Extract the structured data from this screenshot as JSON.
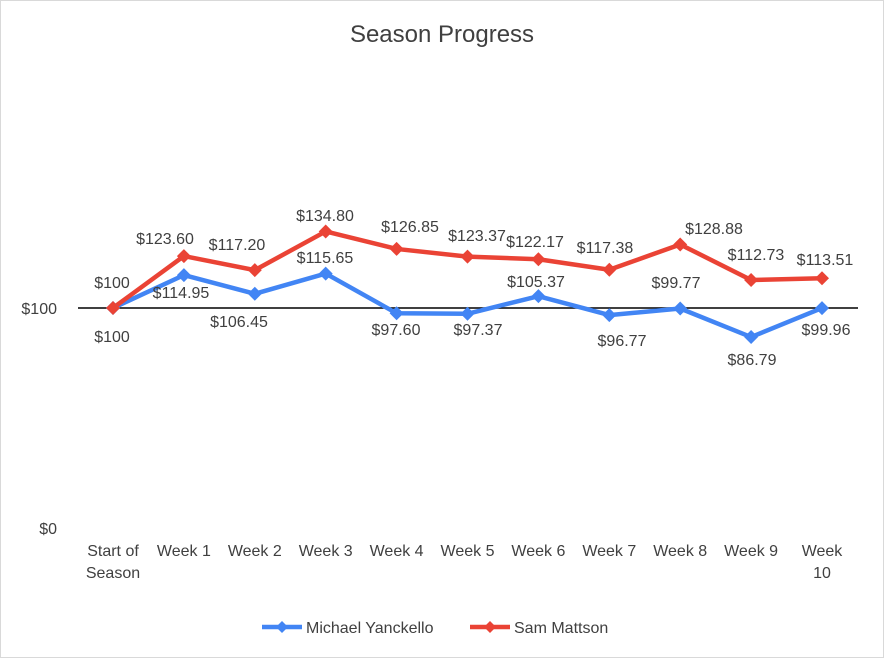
{
  "chart_data": {
    "type": "line",
    "title": "Season Progress",
    "xlabel": "",
    "ylabel": "",
    "categories": [
      "Start of Season",
      "Week 1",
      "Week 2",
      "Week 3",
      "Week 4",
      "Week 5",
      "Week 6",
      "Week 7",
      "Week 8",
      "Week 9",
      "Week 10"
    ],
    "ylim": [
      0,
      200
    ],
    "yticks": [
      0,
      100
    ],
    "ytick_labels": [
      "$0",
      "$100"
    ],
    "grid": false,
    "reference_line": 100,
    "legend": "bottom",
    "series": [
      {
        "name": "Michael Yanckello",
        "color": "#4285f4",
        "values": [
          100,
          114.95,
          106.45,
          115.65,
          97.6,
          97.37,
          105.37,
          96.77,
          99.77,
          86.79,
          99.96
        ],
        "labels": [
          "$100",
          "$114.95",
          "$106.45",
          "$115.65",
          "$97.60",
          "$97.37",
          "$105.37",
          "$96.77",
          "$99.77",
          "$86.79",
          "$99.96"
        ]
      },
      {
        "name": "Sam Mattson",
        "color": "#ea4335",
        "values": [
          100,
          123.6,
          117.2,
          134.8,
          126.85,
          123.37,
          122.17,
          117.38,
          128.88,
          112.73,
          113.51
        ],
        "labels": [
          "$100",
          "$123.60",
          "$117.20",
          "$134.80",
          "$126.85",
          "$123.37",
          "$122.17",
          "$117.38",
          "$128.88",
          "$112.73",
          "$113.51"
        ]
      }
    ]
  }
}
